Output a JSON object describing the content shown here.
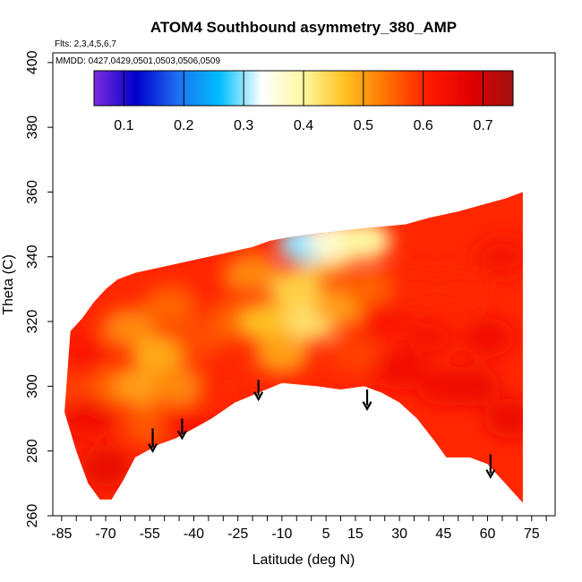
{
  "chart_data": {
    "type": "heatmap",
    "title": "ATOM4 Southbound asymmetry_380_AMP",
    "flights_label": "Flts: 2,3,4,5,6,7",
    "dates_label": "MMDD: 0427,0429,0501,0503,0506,0509",
    "xlabel": "Latitude (deg N)",
    "ylabel": "Theta (C)",
    "xlim": [
      -88,
      83
    ],
    "ylim": [
      260,
      403
    ],
    "x_ticks": [
      -85,
      -70,
      -55,
      -40,
      -25,
      -10,
      5,
      15,
      30,
      45,
      60,
      75
    ],
    "x_tick_labels": [
      "-85",
      "-70",
      "-55",
      "-40",
      "-25",
      "-10",
      "5",
      "15",
      "30",
      "45",
      "60",
      "75"
    ],
    "x_minor_step": 5,
    "y_ticks": [
      260,
      280,
      300,
      320,
      340,
      360,
      380,
      400
    ],
    "y_tick_labels": [
      "260",
      "280",
      "300",
      "320",
      "340",
      "360",
      "380",
      "400"
    ],
    "colorbar": {
      "range": [
        0.05,
        0.75
      ],
      "ticks": [
        0.1,
        0.2,
        0.3,
        0.4,
        0.5,
        0.6,
        0.7
      ],
      "tick_labels": [
        "0.1",
        "0.2",
        "0.3",
        "0.4",
        "0.5",
        "0.6",
        "0.7"
      ],
      "colors": [
        "#7f2bdc",
        "#0000cc",
        "#1e6ff0",
        "#00bfff",
        "#ffffff",
        "#fff7a0",
        "#ffc020",
        "#ff7000",
        "#ff1a00",
        "#e00000",
        "#a01010"
      ]
    },
    "envelope_top": [
      [
        -82,
        317
      ],
      [
        -78,
        321
      ],
      [
        -74,
        326
      ],
      [
        -70,
        330
      ],
      [
        -66,
        333
      ],
      [
        -60,
        335
      ],
      [
        -50,
        337
      ],
      [
        -40,
        339
      ],
      [
        -30,
        341
      ],
      [
        -20,
        343
      ],
      [
        -14,
        345
      ],
      [
        -8,
        346
      ],
      [
        0,
        347
      ],
      [
        10,
        348
      ],
      [
        20,
        349
      ],
      [
        32,
        350
      ],
      [
        40,
        352
      ],
      [
        50,
        354
      ],
      [
        58,
        356
      ],
      [
        66,
        358
      ],
      [
        72,
        360
      ]
    ],
    "envelope_bottom": [
      [
        72,
        264
      ],
      [
        66,
        270
      ],
      [
        60,
        276
      ],
      [
        54,
        278
      ],
      [
        46,
        278
      ],
      [
        42,
        283
      ],
      [
        36,
        290
      ],
      [
        30,
        295
      ],
      [
        24,
        298
      ],
      [
        18,
        300
      ],
      [
        10,
        299
      ],
      [
        2,
        300
      ],
      [
        -10,
        301
      ],
      [
        -18,
        298
      ],
      [
        -26,
        295
      ],
      [
        -34,
        290
      ],
      [
        -40,
        287
      ],
      [
        -46,
        284
      ],
      [
        -52,
        282
      ],
      [
        -56,
        280
      ],
      [
        -60,
        278
      ],
      [
        -64,
        271
      ],
      [
        -68,
        265
      ],
      [
        -72,
        265
      ],
      [
        -76,
        270
      ],
      [
        -80,
        280
      ],
      [
        -84,
        292
      ]
    ],
    "cells": [
      {
        "lat": -84,
        "theta": 300,
        "value": 0.58
      },
      {
        "lat": -78,
        "theta": 310,
        "value": 0.62
      },
      {
        "lat": -76,
        "theta": 290,
        "value": 0.64
      },
      {
        "lat": -70,
        "theta": 275,
        "value": 0.66
      },
      {
        "lat": -66,
        "theta": 300,
        "value": 0.55
      },
      {
        "lat": -62,
        "theta": 318,
        "value": 0.52
      },
      {
        "lat": -58,
        "theta": 300,
        "value": 0.5
      },
      {
        "lat": -55,
        "theta": 288,
        "value": 0.56
      },
      {
        "lat": -52,
        "theta": 310,
        "value": 0.49
      },
      {
        "lat": -48,
        "theta": 325,
        "value": 0.55
      },
      {
        "lat": -45,
        "theta": 300,
        "value": 0.52
      },
      {
        "lat": -42,
        "theta": 288,
        "value": 0.62
      },
      {
        "lat": -38,
        "theta": 315,
        "value": 0.57
      },
      {
        "lat": -34,
        "theta": 330,
        "value": 0.6
      },
      {
        "lat": -30,
        "theta": 300,
        "value": 0.6
      },
      {
        "lat": -25,
        "theta": 320,
        "value": 0.55
      },
      {
        "lat": -20,
        "theta": 335,
        "value": 0.52
      },
      {
        "lat": -15,
        "theta": 320,
        "value": 0.47
      },
      {
        "lat": -10,
        "theta": 310,
        "value": 0.5
      },
      {
        "lat": -5,
        "theta": 330,
        "value": 0.45
      },
      {
        "lat": 0,
        "theta": 320,
        "value": 0.43
      },
      {
        "lat": 5,
        "theta": 340,
        "value": 0.47
      },
      {
        "lat": 10,
        "theta": 325,
        "value": 0.5
      },
      {
        "lat": 15,
        "theta": 310,
        "value": 0.58
      },
      {
        "lat": 20,
        "theta": 330,
        "value": 0.55
      },
      {
        "lat": 25,
        "theta": 320,
        "value": 0.62
      },
      {
        "lat": 30,
        "theta": 305,
        "value": 0.64
      },
      {
        "lat": 35,
        "theta": 330,
        "value": 0.6
      },
      {
        "lat": 40,
        "theta": 315,
        "value": 0.63
      },
      {
        "lat": 45,
        "theta": 300,
        "value": 0.64
      },
      {
        "lat": 50,
        "theta": 330,
        "value": 0.6
      },
      {
        "lat": 55,
        "theta": 300,
        "value": 0.65
      },
      {
        "lat": 60,
        "theta": 315,
        "value": 0.64
      },
      {
        "lat": 65,
        "theta": 340,
        "value": 0.63
      },
      {
        "lat": 68,
        "theta": 290,
        "value": 0.65
      },
      {
        "lat": -2,
        "theta": 344,
        "value": 0.3
      },
      {
        "lat": 8,
        "theta": 345,
        "value": 0.36
      },
      {
        "lat": 18,
        "theta": 345,
        "value": 0.4
      }
    ],
    "arrows": [
      {
        "lat": -54,
        "theta_top": 287,
        "theta_bottom": 280
      },
      {
        "lat": -44,
        "theta_top": 290,
        "theta_bottom": 284
      },
      {
        "lat": -18,
        "theta_top": 302,
        "theta_bottom": 296
      },
      {
        "lat": 19,
        "theta_top": 299,
        "theta_bottom": 293
      },
      {
        "lat": 61,
        "theta_top": 279,
        "theta_bottom": 272
      }
    ]
  }
}
